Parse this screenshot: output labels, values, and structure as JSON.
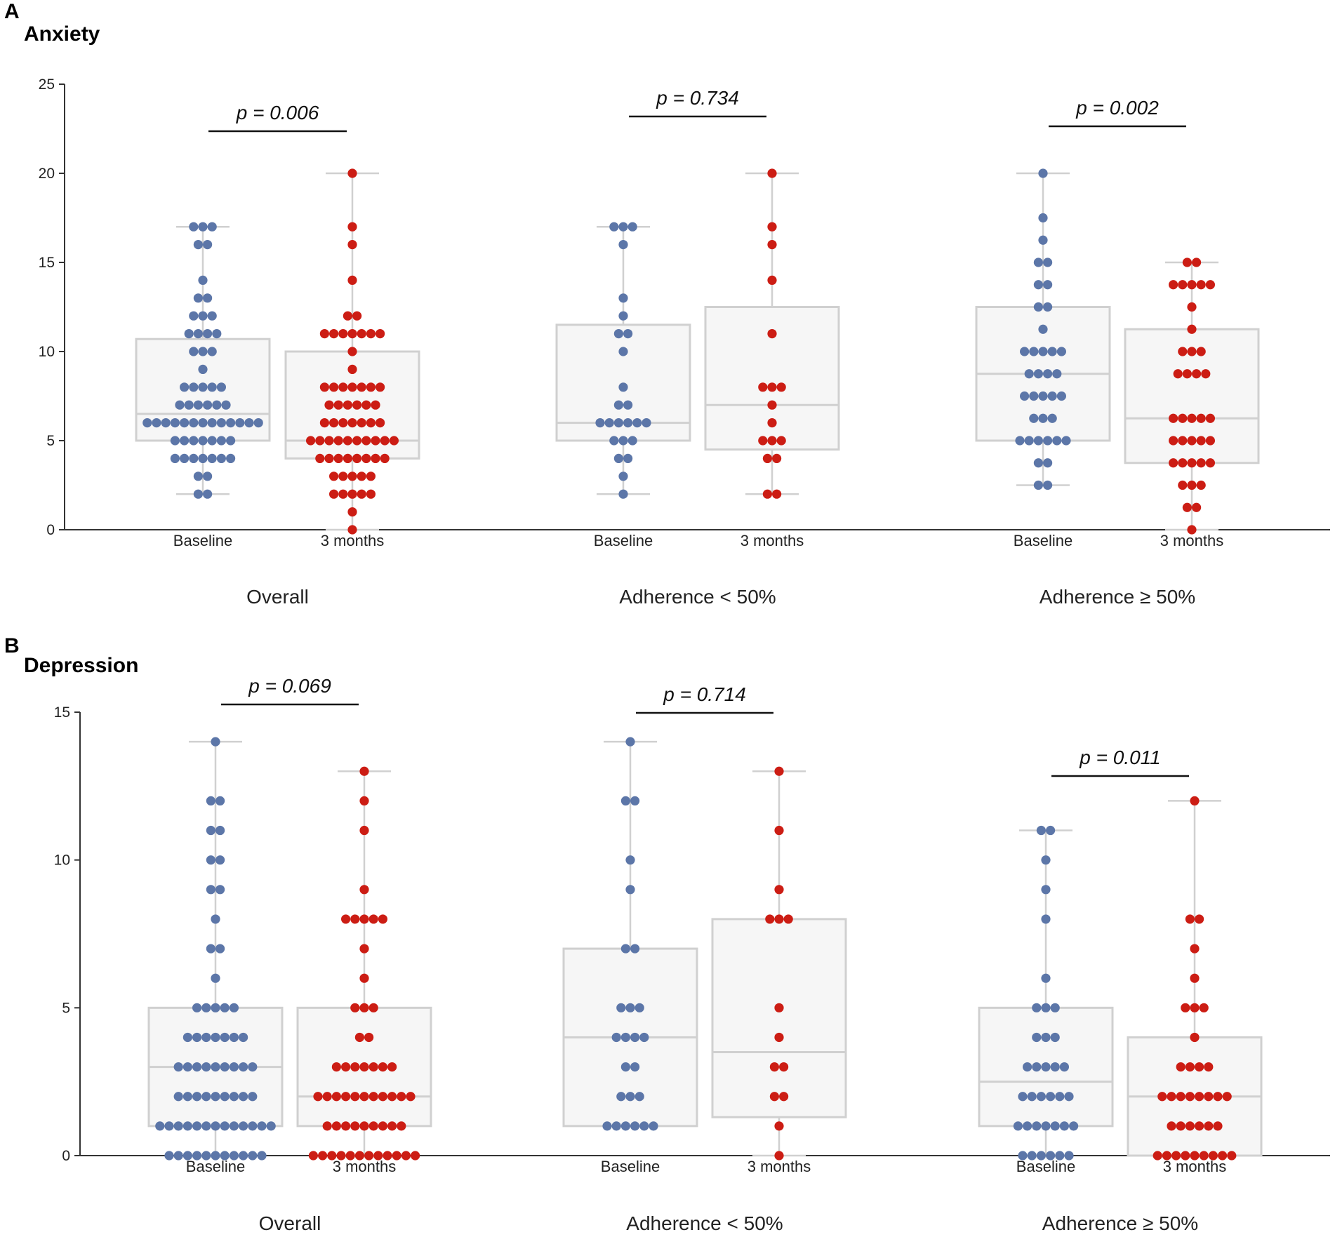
{
  "colors": {
    "baseline": "#5c76a8",
    "three_months": "#cc1d14",
    "box_stroke": "#d0d0d0",
    "box_fill": "#f6f6f6",
    "axis": "#333333"
  },
  "chart_data": [
    {
      "type": "box-dot",
      "panel_letter": "A",
      "title": "Anxiety",
      "ylim": [
        0,
        25
      ],
      "yticks": [
        0,
        5,
        10,
        15,
        20,
        25
      ],
      "groups": [
        {
          "name": "Overall",
          "p_value": "p = 0.006",
          "series": [
            {
              "label": "Baseline",
              "kind": "baseline",
              "box": {
                "min": 2,
                "q1": 5,
                "median": 6.5,
                "q3": 10.7,
                "max": 17
              },
              "values": [
                2,
                2,
                3,
                3,
                4,
                4,
                4,
                4,
                4,
                4,
                4,
                5,
                5,
                5,
                5,
                5,
                5,
                5,
                6,
                6,
                6,
                6,
                6,
                6,
                6,
                6,
                6,
                6,
                6,
                6,
                6,
                7,
                7,
                7,
                7,
                7,
                7,
                8,
                8,
                8,
                8,
                8,
                9,
                10,
                10,
                10,
                11,
                11,
                11,
                11,
                12,
                12,
                12,
                13,
                13,
                14,
                16,
                16,
                17,
                17,
                17
              ]
            },
            {
              "label": "3 months",
              "kind": "three_months",
              "box": {
                "min": 0,
                "q1": 4,
                "median": 5,
                "q3": 10,
                "max": 20
              },
              "values": [
                0,
                1,
                2,
                2,
                2,
                2,
                2,
                3,
                3,
                3,
                3,
                3,
                4,
                4,
                4,
                4,
                4,
                4,
                4,
                4,
                5,
                5,
                5,
                5,
                5,
                5,
                5,
                5,
                5,
                5,
                6,
                6,
                6,
                6,
                6,
                6,
                6,
                7,
                7,
                7,
                7,
                7,
                7,
                8,
                8,
                8,
                8,
                8,
                8,
                8,
                9,
                10,
                11,
                11,
                11,
                11,
                11,
                11,
                11,
                12,
                12,
                14,
                16,
                17,
                20
              ]
            }
          ]
        },
        {
          "name": "Adherence < 50%",
          "p_value": "p = 0.734",
          "series": [
            {
              "label": "Baseline",
              "kind": "baseline",
              "box": {
                "min": 2,
                "q1": 5,
                "median": 6,
                "q3": 11.5,
                "max": 17
              },
              "values": [
                2,
                3,
                4,
                4,
                5,
                5,
                5,
                6,
                6,
                6,
                6,
                6,
                6,
                7,
                7,
                8,
                10,
                11,
                11,
                12,
                13,
                16,
                17,
                17,
                17
              ]
            },
            {
              "label": "3 months",
              "kind": "three_months",
              "box": {
                "min": 2,
                "q1": 4.5,
                "median": 7,
                "q3": 12.5,
                "max": 20
              },
              "values": [
                2,
                2,
                4,
                4,
                5,
                5,
                5,
                6,
                7,
                8,
                8,
                8,
                11,
                14,
                16,
                17,
                20
              ]
            }
          ]
        },
        {
          "name": "Adherence ≥ 50%",
          "p_value": "p = 0.002",
          "series": [
            {
              "label": "Baseline",
              "kind": "baseline",
              "box": {
                "min": 2.5,
                "q1": 5,
                "median": 8.75,
                "q3": 12.5,
                "max": 20
              },
              "values": [
                2.5,
                2.5,
                3.75,
                3.75,
                5,
                5,
                5,
                5,
                5,
                5,
                6.25,
                6.25,
                6.25,
                7.5,
                7.5,
                7.5,
                7.5,
                7.5,
                8.75,
                8.75,
                8.75,
                8.75,
                10,
                10,
                10,
                10,
                10,
                11.25,
                12.5,
                12.5,
                13.75,
                13.75,
                15,
                15,
                16.25,
                17.5,
                20
              ]
            },
            {
              "label": "3 months",
              "kind": "three_months",
              "box": {
                "min": 0,
                "q1": 3.75,
                "median": 6.25,
                "q3": 11.25,
                "max": 15
              },
              "values": [
                0,
                1.25,
                1.25,
                2.5,
                2.5,
                2.5,
                3.75,
                3.75,
                3.75,
                3.75,
                3.75,
                5,
                5,
                5,
                5,
                5,
                6.25,
                6.25,
                6.25,
                6.25,
                6.25,
                8.75,
                8.75,
                8.75,
                8.75,
                10,
                10,
                10,
                11.25,
                12.5,
                13.75,
                13.75,
                13.75,
                13.75,
                13.75,
                15,
                15
              ]
            }
          ]
        }
      ]
    },
    {
      "type": "box-dot",
      "panel_letter": "B",
      "title": "Depression",
      "ylim": [
        0,
        15
      ],
      "yticks": [
        0,
        5,
        10,
        15
      ],
      "groups": [
        {
          "name": "Overall",
          "p_value": "p = 0.069",
          "series": [
            {
              "label": "Baseline",
              "kind": "baseline",
              "box": {
                "min": 0,
                "q1": 1,
                "median": 3,
                "q3": 5,
                "max": 14
              },
              "values": [
                0,
                0,
                0,
                0,
                0,
                0,
                0,
                0,
                0,
                0,
                0,
                1,
                1,
                1,
                1,
                1,
                1,
                1,
                1,
                1,
                1,
                1,
                1,
                1,
                2,
                2,
                2,
                2,
                2,
                2,
                2,
                2,
                2,
                3,
                3,
                3,
                3,
                3,
                3,
                3,
                3,
                3,
                4,
                4,
                4,
                4,
                4,
                4,
                4,
                5,
                5,
                5,
                5,
                5,
                6,
                7,
                7,
                8,
                9,
                9,
                10,
                10,
                11,
                11,
                12,
                12,
                14
              ]
            },
            {
              "label": "3 months",
              "kind": "three_months",
              "box": {
                "min": 0,
                "q1": 1,
                "median": 2,
                "q3": 5,
                "max": 13
              },
              "values": [
                0,
                0,
                0,
                0,
                0,
                0,
                0,
                0,
                0,
                0,
                0,
                0,
                1,
                1,
                1,
                1,
                1,
                1,
                1,
                1,
                1,
                2,
                2,
                2,
                2,
                2,
                2,
                2,
                2,
                2,
                2,
                2,
                3,
                3,
                3,
                3,
                3,
                3,
                3,
                4,
                4,
                5,
                5,
                5,
                6,
                7,
                8,
                8,
                8,
                8,
                8,
                9,
                11,
                12,
                13
              ]
            }
          ]
        },
        {
          "name": "Adherence < 50%",
          "p_value": "p = 0.714",
          "series": [
            {
              "label": "Baseline",
              "kind": "baseline",
              "box": {
                "min": 1,
                "q1": 1,
                "median": 4,
                "q3": 7,
                "max": 14
              },
              "values": [
                1,
                1,
                1,
                1,
                1,
                1,
                2,
                2,
                2,
                3,
                3,
                4,
                4,
                4,
                4,
                5,
                5,
                5,
                7,
                7,
                9,
                10,
                12,
                12,
                14
              ]
            },
            {
              "label": "3 months",
              "kind": "three_months",
              "box": {
                "min": 0,
                "q1": 1.3,
                "median": 3.5,
                "q3": 8,
                "max": 13
              },
              "values": [
                0,
                1,
                2,
                2,
                3,
                3,
                4,
                5,
                8,
                8,
                8,
                9,
                11,
                13
              ]
            }
          ]
        },
        {
          "name": "Adherence ≥ 50%",
          "p_value": "p = 0.011",
          "series": [
            {
              "label": "Baseline",
              "kind": "baseline",
              "box": {
                "min": 0,
                "q1": 1,
                "median": 2.5,
                "q3": 5,
                "max": 11
              },
              "values": [
                0,
                0,
                0,
                0,
                0,
                0,
                1,
                1,
                1,
                1,
                1,
                1,
                1,
                2,
                2,
                2,
                2,
                2,
                2,
                3,
                3,
                3,
                3,
                3,
                4,
                4,
                4,
                5,
                5,
                5,
                6,
                8,
                9,
                10,
                11,
                11
              ]
            },
            {
              "label": "3 months",
              "kind": "three_months",
              "box": {
                "min": 0,
                "q1": 0,
                "median": 2,
                "q3": 4,
                "max": 12
              },
              "values": [
                0,
                0,
                0,
                0,
                0,
                0,
                0,
                0,
                0,
                1,
                1,
                1,
                1,
                1,
                1,
                2,
                2,
                2,
                2,
                2,
                2,
                2,
                2,
                3,
                3,
                3,
                3,
                4,
                5,
                5,
                5,
                6,
                7,
                8,
                8,
                12
              ]
            }
          ]
        }
      ]
    }
  ]
}
